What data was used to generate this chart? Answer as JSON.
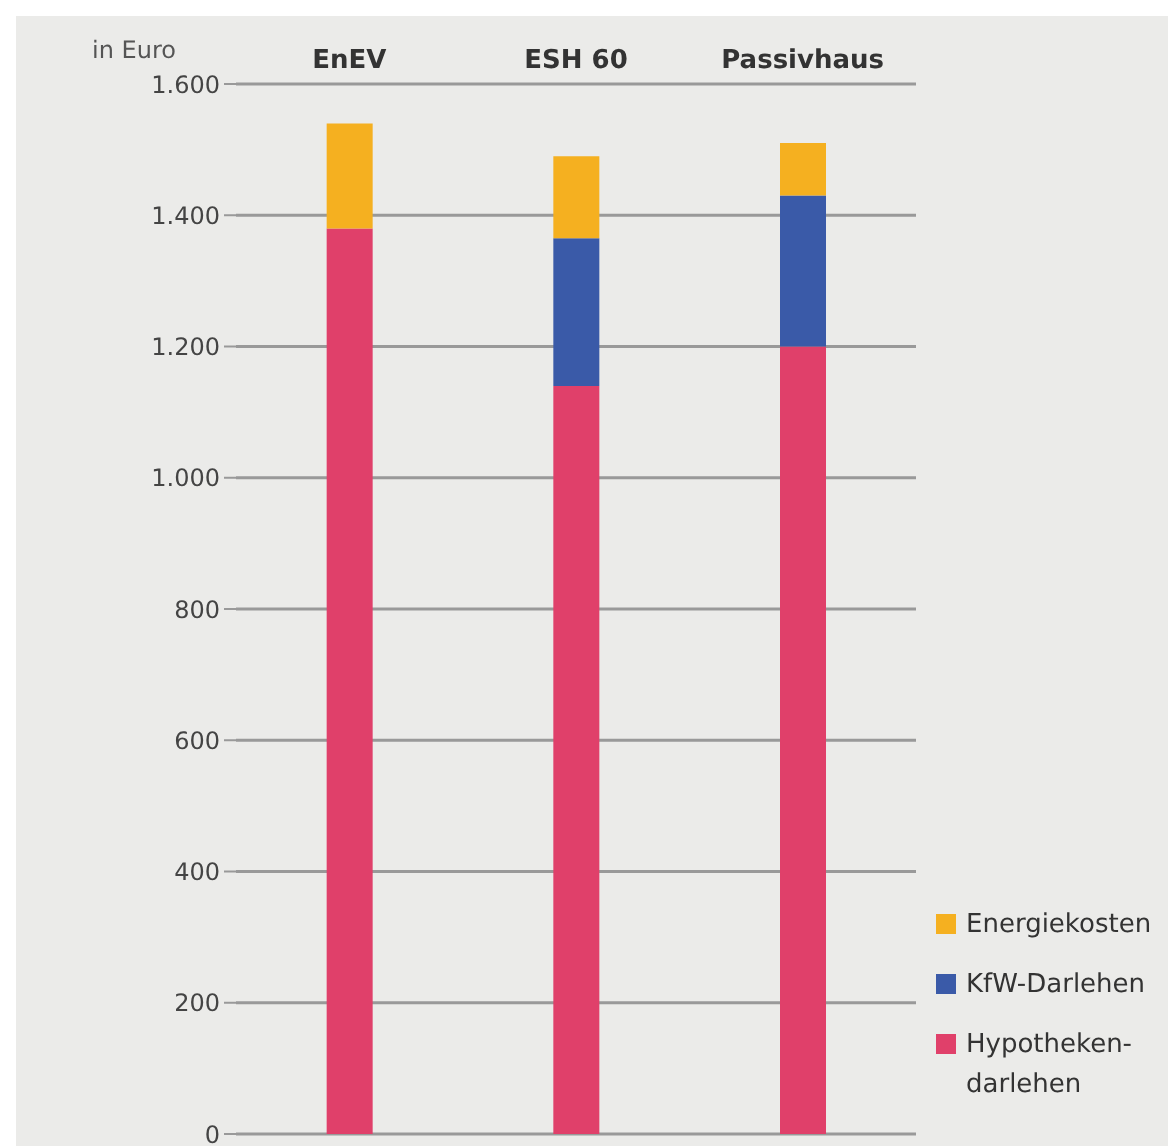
{
  "chart_data": {
    "type": "bar",
    "stacked": true,
    "ylabel": "in Euro",
    "categories": [
      "EnEV",
      "ESH 60",
      "Passivhaus"
    ],
    "series": [
      {
        "name": "Hypotheken- darlehen",
        "color": "#e0406a",
        "values": [
          1380,
          1140,
          1200
        ]
      },
      {
        "name": "KfW-Darlehen",
        "color": "#3a5aa8",
        "values": [
          0,
          225,
          230
        ]
      },
      {
        "name": "Energiekosten",
        "color": "#f5b020",
        "values": [
          160,
          125,
          80
        ]
      }
    ],
    "ylim": [
      0,
      1600
    ],
    "yticks": [
      0,
      200,
      400,
      600,
      800,
      {
        "value": 1000,
        "label": "1.000"
      },
      {
        "value": 1200,
        "label": "1.200"
      },
      {
        "value": 1400,
        "label": "1.400"
      },
      {
        "value": 1600,
        "label": "1.600"
      }
    ],
    "grid": "y",
    "legend": "bottom right"
  }
}
